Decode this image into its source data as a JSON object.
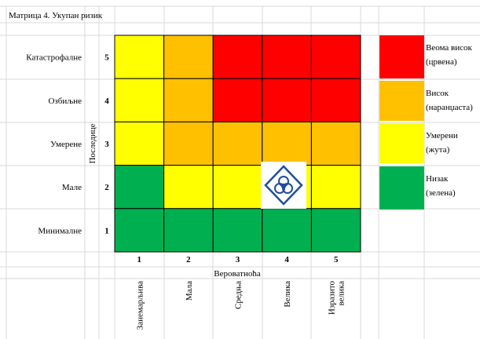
{
  "title": "Матрица 4. Укупан ризик",
  "consequences_label": "Последице",
  "probability_label": "Вероватноћа",
  "rows": [
    {
      "label": "Катастрофалне",
      "level": "5",
      "colors": [
        "#ffff00",
        "#ffc000",
        "#ff0000",
        "#ff0000",
        "#ff0000"
      ]
    },
    {
      "label": "Озбиљне",
      "level": "4",
      "colors": [
        "#ffff00",
        "#ffc000",
        "#ff0000",
        "#ff0000",
        "#ff0000"
      ]
    },
    {
      "label": "Умерене",
      "level": "3",
      "colors": [
        "#ffff00",
        "#ffc000",
        "#ffc000",
        "#ffc000",
        "#ffc000"
      ]
    },
    {
      "label": "Мале",
      "level": "2",
      "colors": [
        "#00b050",
        "#ffff00",
        "#ffff00",
        "#ffff00",
        "#ffff00"
      ]
    },
    {
      "label": "Минималне",
      "level": "1",
      "colors": [
        "#00b050",
        "#00b050",
        "#00b050",
        "#00b050",
        "#00b050"
      ]
    }
  ],
  "columns": [
    {
      "level": "1",
      "label": "Занемарљива"
    },
    {
      "level": "2",
      "label": "Мала"
    },
    {
      "level": "3",
      "label": "Средња"
    },
    {
      "level": "4",
      "label": "Велика"
    },
    {
      "level": "5",
      "label": "Изразито велика"
    }
  ],
  "legend": [
    {
      "color": "#ff0000",
      "lines": [
        "Веома висок",
        "(црвена)"
      ]
    },
    {
      "color": "#ffc000",
      "lines": [
        "Висок",
        "(наранџаста)"
      ]
    },
    {
      "color": "#ffff00",
      "lines": [
        "Умерени",
        "(жута)"
      ]
    },
    {
      "color": "#00b050",
      "lines": [
        "Низак",
        "(зелена)"
      ]
    }
  ]
}
